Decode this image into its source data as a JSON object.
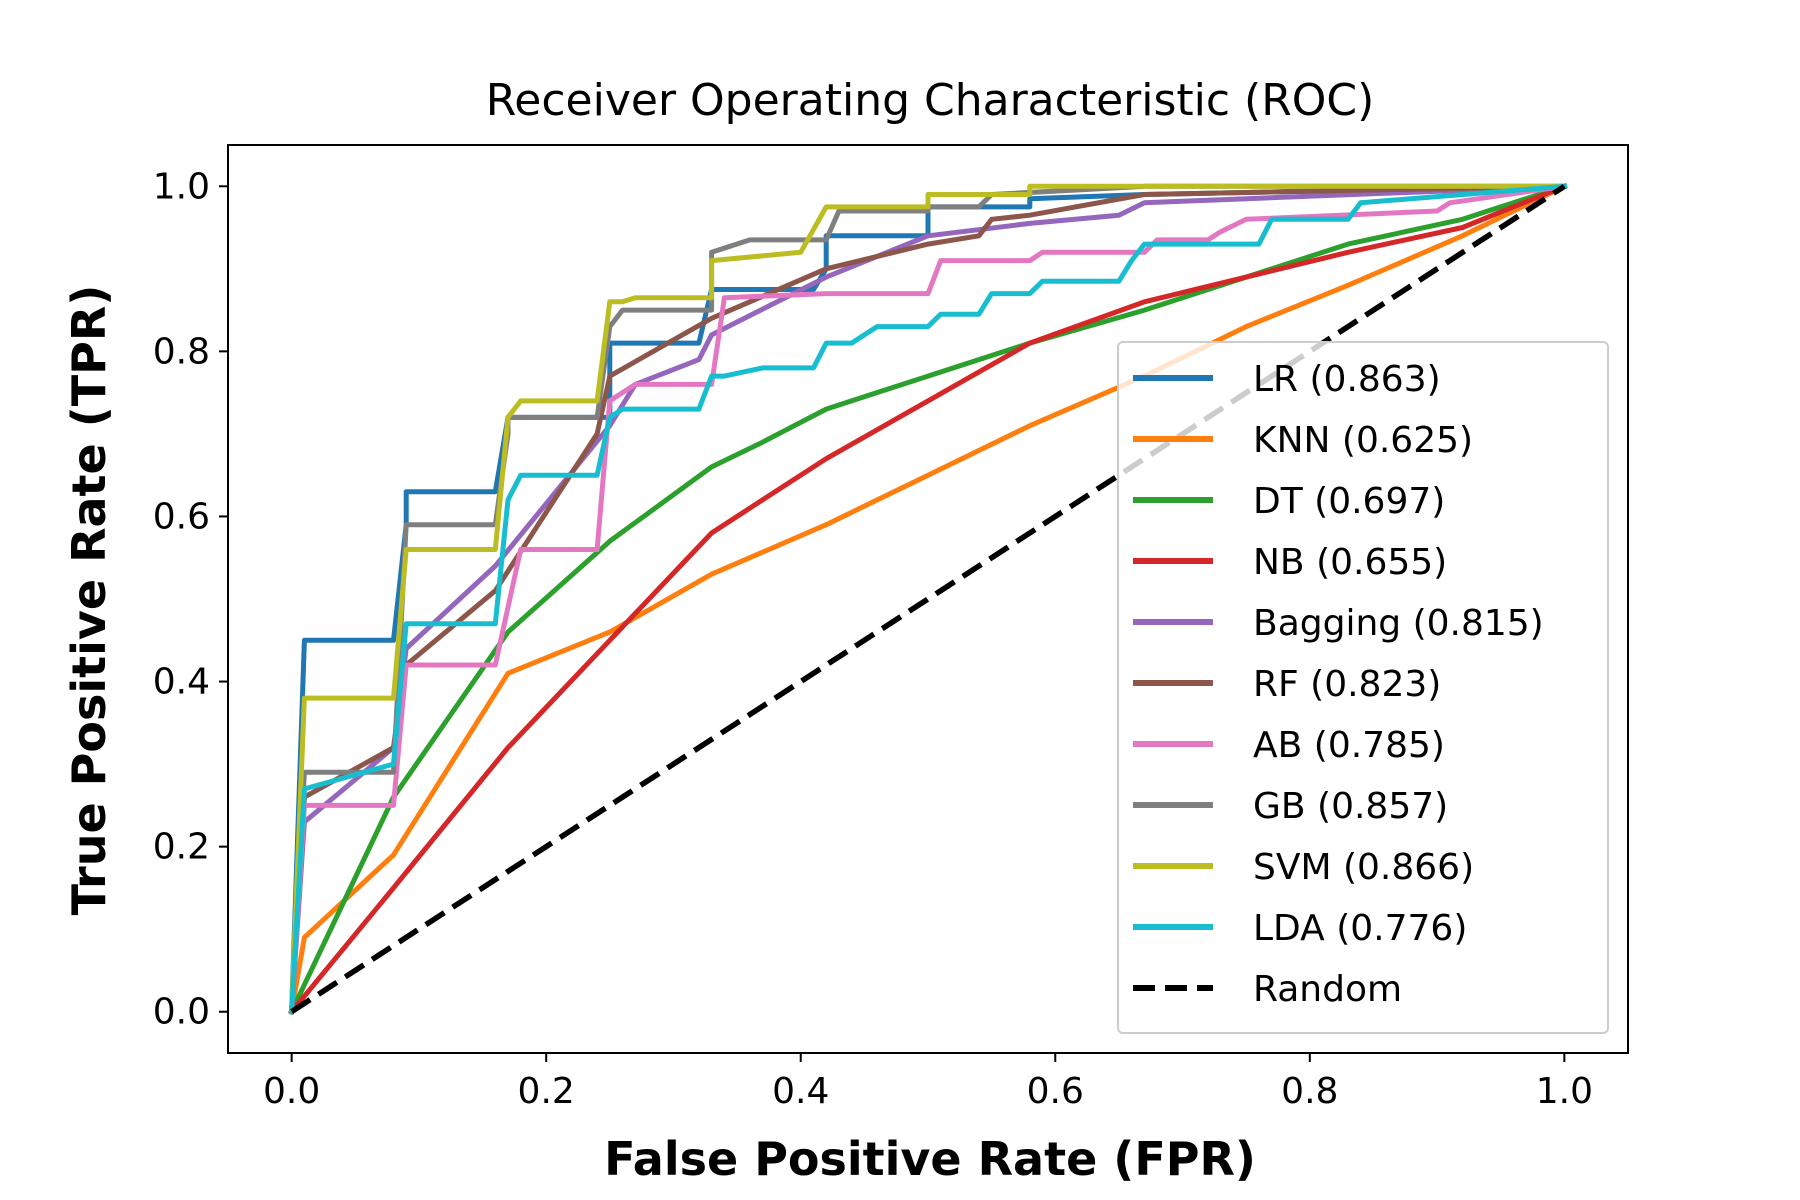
{
  "chart_data": {
    "type": "line",
    "title": "Receiver Operating Characteristic (ROC)",
    "xlabel": "False Positive Rate (FPR)",
    "ylabel": "True Positive Rate (TPR)",
    "xlim": [
      -0.05,
      1.05
    ],
    "ylim": [
      -0.05,
      1.05
    ],
    "xticks": [
      "0.0",
      "0.2",
      "0.4",
      "0.6",
      "0.8",
      "1.0"
    ],
    "yticks": [
      "0.0",
      "0.2",
      "0.4",
      "0.6",
      "0.8",
      "1.0"
    ],
    "grid": false,
    "legend_position": "lower right",
    "series": [
      {
        "name": "LR (0.863)",
        "color": "#1f77b4",
        "dashed": false,
        "x": [
          0,
          0.01,
          0.01,
          0.08,
          0.09,
          0.09,
          0.16,
          0.17,
          0.17,
          0.25,
          0.25,
          0.32,
          0.33,
          0.33,
          0.41,
          0.42,
          0.42,
          0.5,
          0.5,
          0.58,
          0.58,
          0.67,
          1.0
        ],
        "y": [
          0,
          0.45,
          0.45,
          0.45,
          0.59,
          0.63,
          0.63,
          0.72,
          0.72,
          0.72,
          0.81,
          0.81,
          0.875,
          0.875,
          0.875,
          0.9,
          0.94,
          0.94,
          0.975,
          0.975,
          0.985,
          0.99,
          1.0
        ]
      },
      {
        "name": "KNN (0.625)",
        "color": "#ff7f0e",
        "dashed": false,
        "x": [
          0,
          0.01,
          0.08,
          0.17,
          0.25,
          0.33,
          0.42,
          0.5,
          0.58,
          0.67,
          0.75,
          0.83,
          0.92,
          1.0
        ],
        "y": [
          0,
          0.09,
          0.19,
          0.41,
          0.46,
          0.53,
          0.59,
          0.65,
          0.71,
          0.77,
          0.83,
          0.88,
          0.94,
          1.0
        ]
      },
      {
        "name": "DT (0.697)",
        "color": "#2ca02c",
        "dashed": false,
        "x": [
          0,
          0.08,
          0.17,
          0.25,
          0.33,
          0.37,
          0.42,
          0.5,
          0.58,
          0.67,
          0.75,
          0.83,
          0.92,
          1.0
        ],
        "y": [
          0,
          0.26,
          0.46,
          0.57,
          0.66,
          0.69,
          0.73,
          0.77,
          0.81,
          0.85,
          0.89,
          0.93,
          0.96,
          1.0
        ]
      },
      {
        "name": "NB (0.655)",
        "color": "#d62728",
        "dashed": false,
        "x": [
          0,
          0.08,
          0.17,
          0.25,
          0.33,
          0.37,
          0.42,
          0.5,
          0.58,
          0.67,
          0.75,
          0.83,
          0.92,
          1.0
        ],
        "y": [
          0,
          0.15,
          0.32,
          0.45,
          0.58,
          0.62,
          0.67,
          0.74,
          0.81,
          0.86,
          0.89,
          0.92,
          0.95,
          1.0
        ]
      },
      {
        "name": "Bagging (0.815)",
        "color": "#9467bd",
        "dashed": false,
        "x": [
          0,
          0.01,
          0.08,
          0.09,
          0.16,
          0.25,
          0.27,
          0.32,
          0.33,
          0.42,
          0.5,
          0.58,
          0.65,
          0.67,
          0.75,
          1.0
        ],
        "y": [
          0,
          0.23,
          0.32,
          0.44,
          0.54,
          0.71,
          0.76,
          0.79,
          0.82,
          0.89,
          0.94,
          0.955,
          0.965,
          0.98,
          0.985,
          1.0
        ]
      },
      {
        "name": "RF (0.823)",
        "color": "#8c564b",
        "dashed": false,
        "x": [
          0,
          0.01,
          0.08,
          0.09,
          0.16,
          0.24,
          0.25,
          0.33,
          0.42,
          0.5,
          0.54,
          0.55,
          0.58,
          0.67,
          1.0
        ],
        "y": [
          0,
          0.26,
          0.32,
          0.42,
          0.51,
          0.7,
          0.77,
          0.84,
          0.9,
          0.93,
          0.94,
          0.96,
          0.965,
          0.99,
          1.0
        ]
      },
      {
        "name": "AB (0.785)",
        "color": "#e377c2",
        "dashed": false,
        "x": [
          0,
          0.01,
          0.08,
          0.09,
          0.16,
          0.18,
          0.24,
          0.25,
          0.27,
          0.33,
          0.34,
          0.42,
          0.5,
          0.51,
          0.58,
          0.59,
          0.67,
          0.68,
          0.72,
          0.73,
          0.75,
          0.9,
          0.91,
          1.0
        ],
        "y": [
          0,
          0.25,
          0.25,
          0.42,
          0.42,
          0.56,
          0.56,
          0.74,
          0.76,
          0.76,
          0.865,
          0.87,
          0.87,
          0.91,
          0.91,
          0.92,
          0.92,
          0.935,
          0.935,
          0.945,
          0.96,
          0.97,
          0.98,
          1.0
        ]
      },
      {
        "name": "GB (0.857)",
        "color": "#7f7f7f",
        "dashed": false,
        "x": [
          0,
          0.01,
          0.08,
          0.09,
          0.16,
          0.17,
          0.17,
          0.24,
          0.25,
          0.26,
          0.33,
          0.33,
          0.36,
          0.42,
          0.43,
          0.5,
          0.5,
          0.54,
          0.55,
          0.67,
          1.0
        ],
        "y": [
          0,
          0.29,
          0.29,
          0.59,
          0.59,
          0.7,
          0.72,
          0.72,
          0.83,
          0.85,
          0.85,
          0.92,
          0.935,
          0.935,
          0.97,
          0.97,
          0.975,
          0.975,
          0.99,
          1.0,
          1.0
        ]
      },
      {
        "name": "SVM (0.866)",
        "color": "#bcbd22",
        "dashed": false,
        "x": [
          0,
          0.01,
          0.08,
          0.09,
          0.16,
          0.17,
          0.18,
          0.24,
          0.25,
          0.26,
          0.27,
          0.33,
          0.33,
          0.4,
          0.42,
          0.5,
          0.5,
          0.58,
          0.58,
          1.0
        ],
        "y": [
          0,
          0.38,
          0.38,
          0.56,
          0.56,
          0.72,
          0.74,
          0.74,
          0.86,
          0.86,
          0.865,
          0.865,
          0.91,
          0.92,
          0.975,
          0.975,
          0.99,
          0.99,
          1.0,
          1.0
        ]
      },
      {
        "name": "LDA (0.776)",
        "color": "#17becf",
        "dashed": false,
        "x": [
          0,
          0.01,
          0.08,
          0.09,
          0.16,
          0.17,
          0.18,
          0.24,
          0.25,
          0.26,
          0.32,
          0.33,
          0.34,
          0.37,
          0.41,
          0.42,
          0.44,
          0.46,
          0.5,
          0.51,
          0.54,
          0.55,
          0.58,
          0.59,
          0.65,
          0.66,
          0.67,
          0.76,
          0.77,
          0.83,
          0.84,
          1.0
        ],
        "y": [
          0,
          0.27,
          0.3,
          0.47,
          0.47,
          0.62,
          0.65,
          0.65,
          0.72,
          0.73,
          0.73,
          0.77,
          0.77,
          0.78,
          0.78,
          0.81,
          0.81,
          0.83,
          0.83,
          0.845,
          0.845,
          0.87,
          0.87,
          0.885,
          0.885,
          0.91,
          0.93,
          0.93,
          0.96,
          0.96,
          0.98,
          1.0
        ]
      },
      {
        "name": "Random",
        "color": "#000000",
        "dashed": true,
        "x": [
          0,
          1
        ],
        "y": [
          0,
          1
        ]
      }
    ]
  }
}
